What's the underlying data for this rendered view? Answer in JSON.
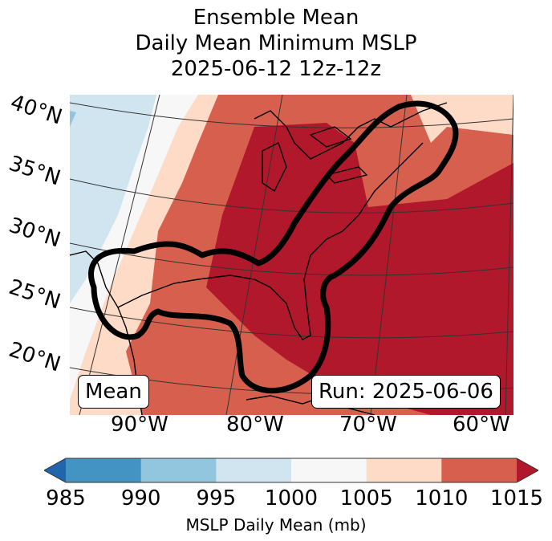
{
  "header": {
    "title_line1": "Ensemble Mean",
    "title_line2": "Daily Mean Minimum MSLP",
    "title_line3": "2025-06-12 12z-12z"
  },
  "map": {
    "lat_labels": [
      "40°N",
      "35°N",
      "30°N",
      "25°N",
      "20°N"
    ],
    "lon_labels": [
      "90°W",
      "80°W",
      "70°W",
      "60°W"
    ],
    "left_box_label": "Mean",
    "right_box_label": "Run: 2025-06-06",
    "contour_color": "#000000"
  },
  "chart_data": {
    "type": "heatmap",
    "title": "Ensemble Mean Daily Mean Minimum MSLP 2025-06-12 12z-12z",
    "colorbar": {
      "label": "MSLP Daily Mean (mb)",
      "levels": [
        985,
        990,
        995,
        1000,
        1005,
        1010,
        1015
      ],
      "tick_labels": [
        "985",
        "990",
        "995",
        "1000",
        "1005",
        "1010",
        "1015"
      ],
      "colors": [
        "#4393c3",
        "#92c5de",
        "#d1e5f0",
        "#f7f7f7",
        "#fddbc7",
        "#d6604d"
      ],
      "under_color": "#2166ac",
      "over_color": "#b2182b",
      "extend": "both"
    },
    "field_description": "Highest pressures (>1015 mb) over eastern US and western Atlantic, decreasing westward to 995-1000 mb over the central US",
    "lat_range": [
      18,
      42
    ],
    "lon_range": [
      -97,
      -58
    ]
  }
}
